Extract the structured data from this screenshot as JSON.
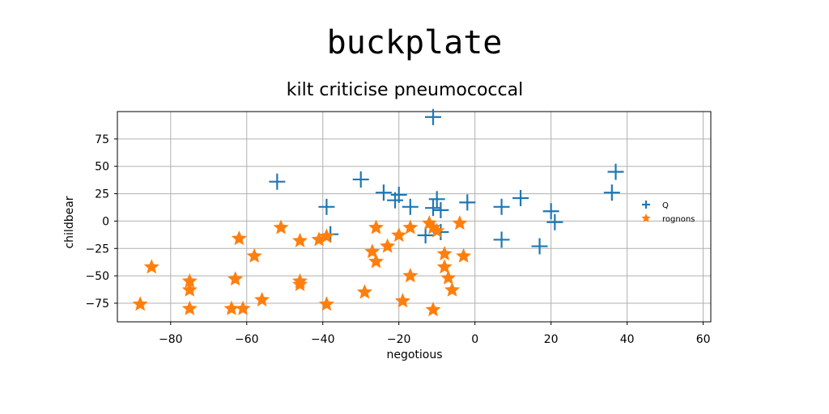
{
  "page": {
    "title": "buckplate"
  },
  "chart_data": {
    "type": "scatter",
    "title": "kilt criticise pneumococcal",
    "xlabel": "negotious",
    "ylabel": "childbear",
    "xlim": [
      -94,
      62
    ],
    "ylim": [
      -92,
      100
    ],
    "xticks": [
      -80,
      -60,
      -40,
      -20,
      0,
      20,
      40,
      60
    ],
    "yticks": [
      -75,
      -50,
      -25,
      0,
      25,
      50,
      75
    ],
    "grid": true,
    "legend_position": "right",
    "series": [
      {
        "name": "Q",
        "marker": "plus",
        "color": "#1f77b4",
        "points": [
          [
            -11,
            95
          ],
          [
            -30,
            38
          ],
          [
            -52,
            36
          ],
          [
            -24,
            26
          ],
          [
            -20,
            24
          ],
          [
            -21,
            19
          ],
          [
            -17,
            13
          ],
          [
            -10,
            20
          ],
          [
            -11,
            12
          ],
          [
            -9,
            10
          ],
          [
            -2,
            17
          ],
          [
            7,
            13
          ],
          [
            12,
            21
          ],
          [
            20,
            9
          ],
          [
            21,
            -1
          ],
          [
            36,
            26
          ],
          [
            37,
            45
          ],
          [
            -39,
            13
          ],
          [
            -38,
            -12
          ],
          [
            -13,
            -13
          ],
          [
            -9,
            -10
          ],
          [
            7,
            -17
          ],
          [
            17,
            -23
          ]
        ]
      },
      {
        "name": "rognons",
        "marker": "star",
        "color": "#ff7f0e",
        "points": [
          [
            -85,
            -42
          ],
          [
            -88,
            -76
          ],
          [
            -75,
            -55
          ],
          [
            -75,
            -63
          ],
          [
            -75,
            -80
          ],
          [
            -63,
            -53
          ],
          [
            -61,
            -80
          ],
          [
            -64,
            -80
          ],
          [
            -62,
            -16
          ],
          [
            -58,
            -32
          ],
          [
            -56,
            -72
          ],
          [
            -51,
            -6
          ],
          [
            -46,
            -18
          ],
          [
            -46,
            -55
          ],
          [
            -46,
            -58
          ],
          [
            -41,
            -17
          ],
          [
            -39,
            -14
          ],
          [
            -39,
            -76
          ],
          [
            -29,
            -65
          ],
          [
            -26,
            -6
          ],
          [
            -27,
            -28
          ],
          [
            -26,
            -37
          ],
          [
            -23,
            -23
          ],
          [
            -20,
            -13
          ],
          [
            -19,
            -73
          ],
          [
            -17,
            -50
          ],
          [
            -17,
            -6
          ],
          [
            -12,
            -2
          ],
          [
            -11,
            -6
          ],
          [
            -10,
            -9
          ],
          [
            -11,
            -81
          ],
          [
            -8,
            -30
          ],
          [
            -8,
            -42
          ],
          [
            -7,
            -52
          ],
          [
            -6,
            -63
          ],
          [
            -4,
            -2
          ],
          [
            -3,
            -32
          ]
        ]
      }
    ]
  }
}
